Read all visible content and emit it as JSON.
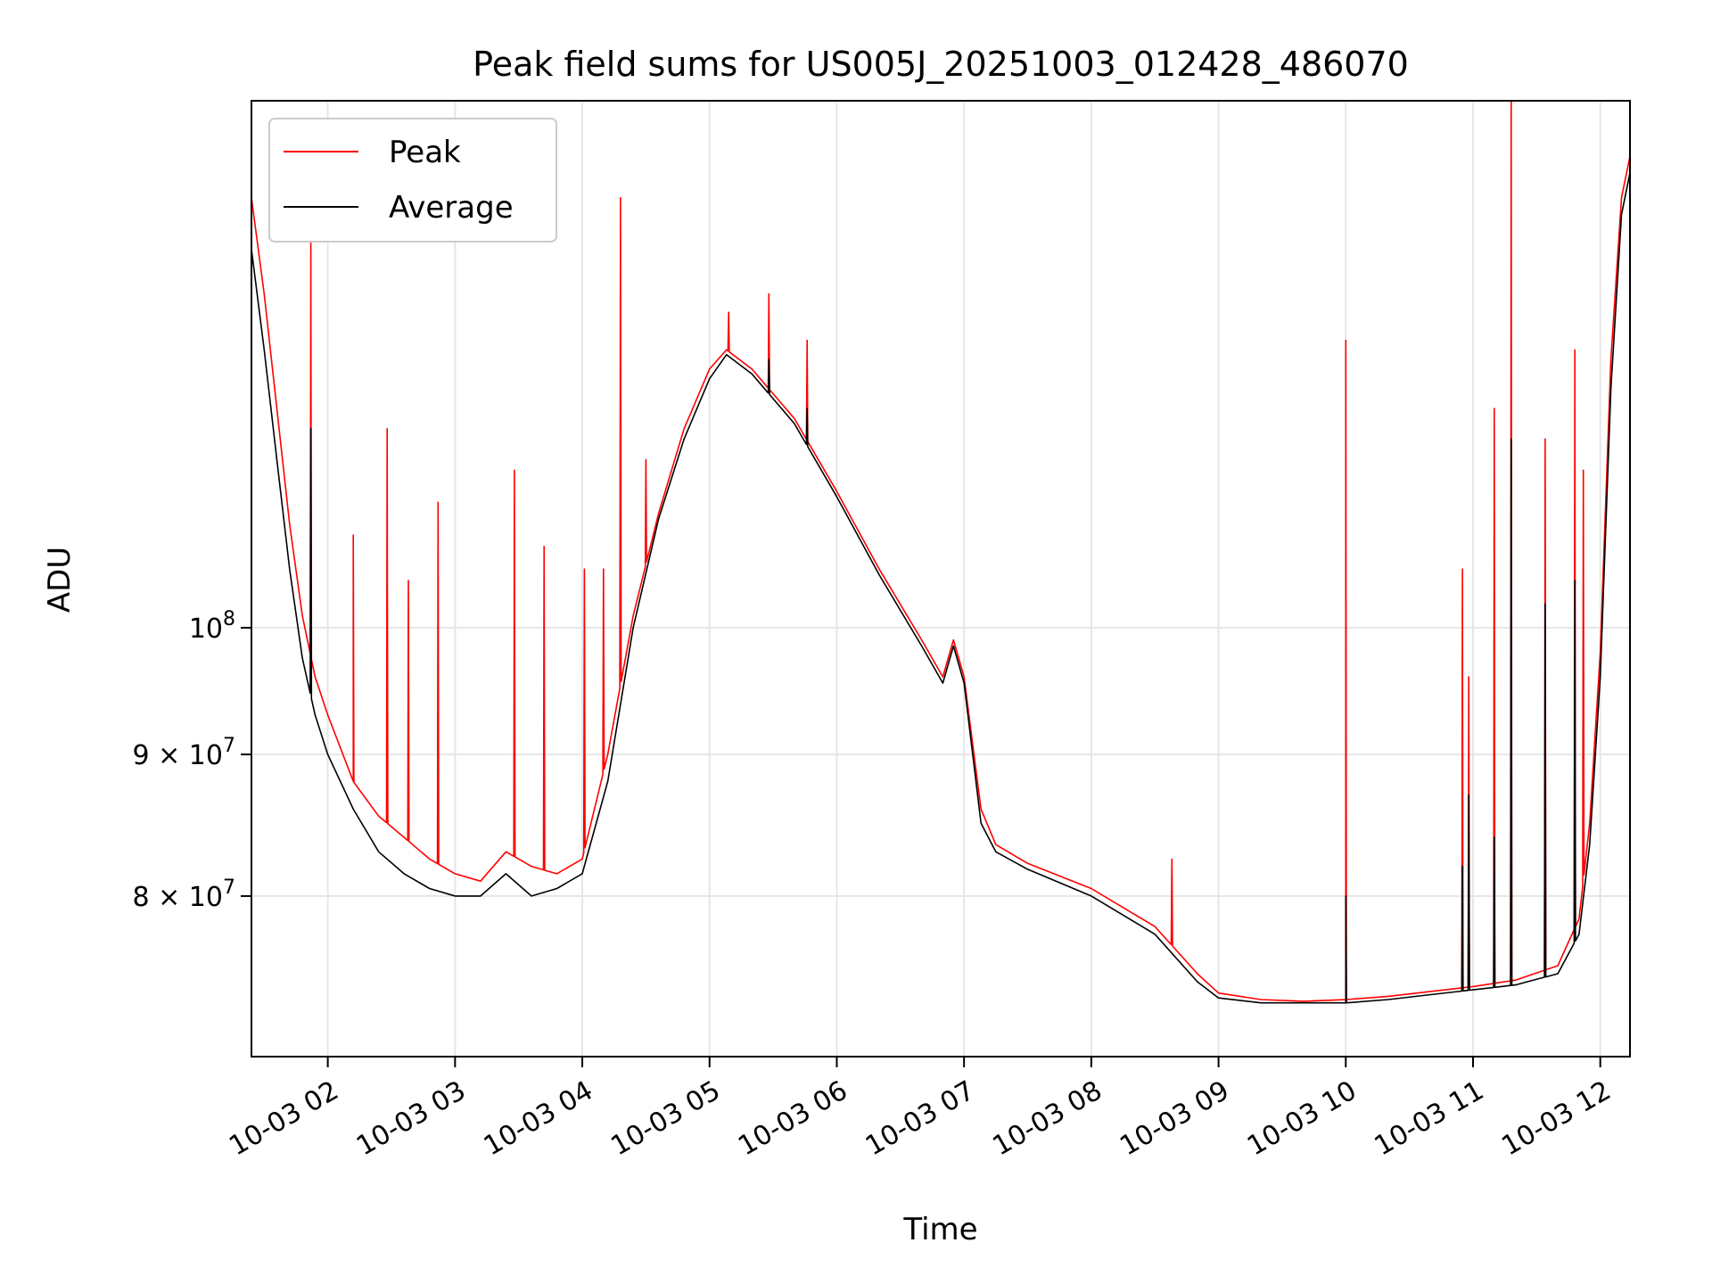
{
  "chart_data": {
    "type": "line",
    "title": "Peak field sums for US005J_20251003_012428_486070",
    "xlabel": "Time",
    "ylabel": "ADU",
    "yscale": "log",
    "xlim": [
      "10-03 01:24",
      "10-03 12:14"
    ],
    "ylim": [
      70000000,
      155000000
    ],
    "x_ticks": [
      "10-03 02",
      "10-03 03",
      "10-03 04",
      "10-03 05",
      "10-03 06",
      "10-03 07",
      "10-03 08",
      "10-03 09",
      "10-03 10",
      "10-03 11",
      "10-03 12"
    ],
    "y_ticks": [
      {
        "value": 80000000,
        "label": "8 × 10",
        "exp": "7"
      },
      {
        "value": 90000000,
        "label": "9 × 10",
        "exp": "7"
      },
      {
        "value": 100000000,
        "label": "10",
        "exp": "8"
      }
    ],
    "grid": true,
    "legend_position": "top-left",
    "colors": {
      "peak": "#ff0000",
      "average": "#000000",
      "grid": "#e6e6e6"
    },
    "series": [
      {
        "name": "Peak",
        "color": "#ff0000",
        "x": [
          "10-03 01:24",
          "10-03 01:30",
          "10-03 01:36",
          "10-03 01:42",
          "10-03 01:48",
          "10-03 01:54",
          "10-03 02:00",
          "10-03 02:12",
          "10-03 02:24",
          "10-03 02:36",
          "10-03 02:48",
          "10-03 03:00",
          "10-03 03:12",
          "10-03 03:24",
          "10-03 03:36",
          "10-03 03:48",
          "10-03 04:00",
          "10-03 04:12",
          "10-03 04:24",
          "10-03 04:36",
          "10-03 04:48",
          "10-03 05:00",
          "10-03 05:08",
          "10-03 05:20",
          "10-03 05:40",
          "10-03 06:00",
          "10-03 06:20",
          "10-03 06:40",
          "10-03 06:50",
          "10-03 06:55",
          "10-03 07:00",
          "10-03 07:08",
          "10-03 07:15",
          "10-03 07:30",
          "10-03 08:00",
          "10-03 08:30",
          "10-03 08:50",
          "10-03 09:00",
          "10-03 09:20",
          "10-03 09:40",
          "10-03 10:00",
          "10-03 10:20",
          "10-03 10:40",
          "10-03 11:00",
          "10-03 11:20",
          "10-03 11:40",
          "10-03 11:50",
          "10-03 11:55",
          "10-03 12:00",
          "10-03 12:05",
          "10-03 12:10",
          "10-03 12:14"
        ],
        "values": [
          143000000,
          132000000,
          120000000,
          109000000,
          101000000,
          96000000,
          93000000,
          88000000,
          85500000,
          84000000,
          82500000,
          81500000,
          81000000,
          83000000,
          82000000,
          81500000,
          82500000,
          90000000,
          101000000,
          110000000,
          118000000,
          124000000,
          126000000,
          124000000,
          119000000,
          112000000,
          105000000,
          99000000,
          96000000,
          99000000,
          96000000,
          86000000,
          83500000,
          82200000,
          80500000,
          78000000,
          75000000,
          73800000,
          73400000,
          73300000,
          73400000,
          73600000,
          73900000,
          74200000,
          74600000,
          75500000,
          78500000,
          85000000,
          98000000,
          125000000,
          143000000,
          148000000
        ],
        "spikes": [
          {
            "x": "10-03 01:52",
            "value": 138000000
          },
          {
            "x": "10-03 02:12",
            "value": 108000000
          },
          {
            "x": "10-03 02:28",
            "value": 118000000
          },
          {
            "x": "10-03 02:38",
            "value": 104000000
          },
          {
            "x": "10-03 02:52",
            "value": 111000000
          },
          {
            "x": "10-03 03:28",
            "value": 114000000
          },
          {
            "x": "10-03 03:42",
            "value": 107000000
          },
          {
            "x": "10-03 04:01",
            "value": 105000000
          },
          {
            "x": "10-03 04:10",
            "value": 105000000
          },
          {
            "x": "10-03 04:18",
            "value": 143000000
          },
          {
            "x": "10-03 04:30",
            "value": 115000000
          },
          {
            "x": "10-03 05:09",
            "value": 130000000
          },
          {
            "x": "10-03 05:28",
            "value": 132000000
          },
          {
            "x": "10-03 05:46",
            "value": 127000000
          },
          {
            "x": "10-03 08:38",
            "value": 82500000
          },
          {
            "x": "10-03 10:00",
            "value": 127000000
          },
          {
            "x": "10-03 10:55",
            "value": 105000000
          },
          {
            "x": "10-03 10:58",
            "value": 96000000
          },
          {
            "x": "10-03 11:10",
            "value": 120000000
          },
          {
            "x": "10-03 11:18",
            "value": 155000000
          },
          {
            "x": "10-03 11:34",
            "value": 117000000
          },
          {
            "x": "10-03 11:48",
            "value": 126000000
          },
          {
            "x": "10-03 11:52",
            "value": 114000000
          }
        ]
      },
      {
        "name": "Average",
        "color": "#000000",
        "x": [
          "10-03 01:24",
          "10-03 01:30",
          "10-03 01:36",
          "10-03 01:42",
          "10-03 01:48",
          "10-03 01:54",
          "10-03 02:00",
          "10-03 02:12",
          "10-03 02:24",
          "10-03 02:36",
          "10-03 02:48",
          "10-03 03:00",
          "10-03 03:12",
          "10-03 03:24",
          "10-03 03:36",
          "10-03 03:48",
          "10-03 04:00",
          "10-03 04:12",
          "10-03 04:24",
          "10-03 04:36",
          "10-03 04:48",
          "10-03 05:00",
          "10-03 05:08",
          "10-03 05:20",
          "10-03 05:40",
          "10-03 06:00",
          "10-03 06:20",
          "10-03 06:40",
          "10-03 06:50",
          "10-03 06:55",
          "10-03 07:00",
          "10-03 07:08",
          "10-03 07:15",
          "10-03 07:30",
          "10-03 08:00",
          "10-03 08:30",
          "10-03 08:50",
          "10-03 09:00",
          "10-03 09:20",
          "10-03 09:40",
          "10-03 10:00",
          "10-03 10:20",
          "10-03 10:40",
          "10-03 11:00",
          "10-03 11:20",
          "10-03 11:40",
          "10-03 11:50",
          "10-03 11:55",
          "10-03 12:00",
          "10-03 12:05",
          "10-03 12:10",
          "10-03 12:14"
        ],
        "values": [
          137000000,
          126000000,
          115000000,
          105000000,
          97500000,
          93000000,
          90000000,
          86000000,
          83000000,
          81500000,
          80500000,
          80000000,
          80000000,
          81500000,
          80000000,
          80500000,
          81500000,
          88000000,
          100000000,
          109500000,
          117000000,
          123000000,
          125500000,
          123500000,
          118500000,
          111500000,
          104500000,
          98500000,
          95500000,
          98500000,
          95500000,
          85000000,
          83000000,
          81800000,
          80000000,
          77500000,
          74500000,
          73500000,
          73200000,
          73200000,
          73200000,
          73400000,
          73700000,
          74000000,
          74300000,
          75000000,
          77500000,
          83500000,
          96000000,
          122000000,
          141000000,
          146000000
        ],
        "spikes": [
          {
            "x": "10-03 01:52",
            "value": 118000000
          },
          {
            "x": "10-03 05:28",
            "value": 125000000
          },
          {
            "x": "10-03 05:46",
            "value": 120000000
          },
          {
            "x": "10-03 10:00",
            "value": 80000000
          },
          {
            "x": "10-03 10:55",
            "value": 82000000
          },
          {
            "x": "10-03 10:58",
            "value": 87000000
          },
          {
            "x": "10-03 11:10",
            "value": 84000000
          },
          {
            "x": "10-03 11:18",
            "value": 117000000
          },
          {
            "x": "10-03 11:34",
            "value": 102000000
          },
          {
            "x": "10-03 11:48",
            "value": 104000000
          }
        ]
      }
    ]
  }
}
